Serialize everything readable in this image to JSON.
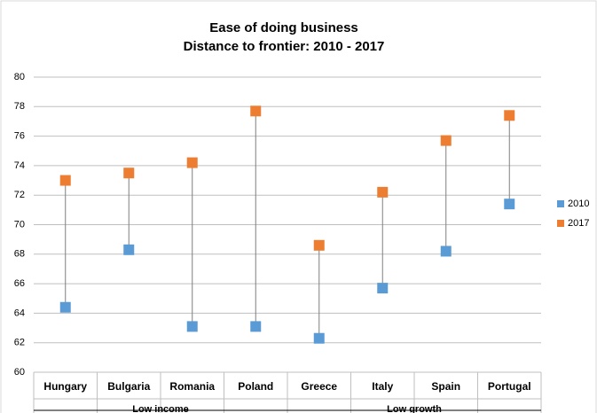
{
  "chart_data": {
    "type": "dumbbell",
    "title": "Ease of doing business",
    "subtitle": "Distance to frontier: 2010 - 2017",
    "categories": [
      "Hungary",
      "Bulgaria",
      "Romania",
      "Poland",
      "Greece",
      "Italy",
      "Spain",
      "Portugal"
    ],
    "groups": [
      {
        "label": "Low income",
        "span": [
          0,
          3
        ]
      },
      {
        "label": "Low growth",
        "span": [
          4,
          7
        ]
      }
    ],
    "series": [
      {
        "name": "2010",
        "color": "#5b9bd5",
        "values": [
          64.4,
          68.3,
          63.1,
          63.1,
          62.3,
          65.7,
          68.2,
          71.4
        ]
      },
      {
        "name": "2017",
        "color": "#ed7d31",
        "values": [
          73.0,
          73.5,
          74.2,
          77.7,
          68.6,
          72.2,
          75.7,
          77.4
        ]
      }
    ],
    "ylim": [
      60,
      80
    ],
    "yticks": [
      60,
      62,
      64,
      66,
      68,
      70,
      72,
      74,
      76,
      78,
      80
    ],
    "grid": true,
    "legend": "right"
  }
}
